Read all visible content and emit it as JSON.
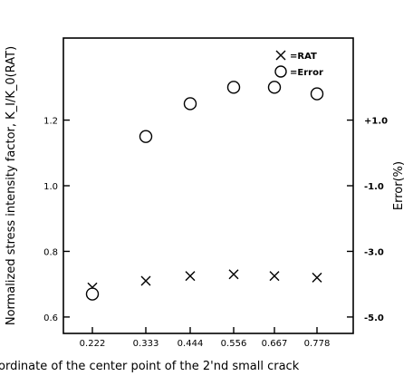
{
  "chart_data": {
    "type": "scatter",
    "title": "",
    "xlabel": "ordinate of the center point of the 2'nd small crack",
    "ylabel": "Normalized stress intensity factor, K_I/K_0(RAT)",
    "y2label": "Error(%)",
    "categories": [
      "0.222",
      "0.333",
      "0.444",
      "0.556",
      "0.667",
      "0.778"
    ],
    "ylim": [
      0.55,
      1.45
    ],
    "y_ticks": [
      0.6,
      0.8,
      1.0,
      1.2
    ],
    "y_tick_labels": [
      "0.6",
      "0.8",
      "1.0",
      "1.2"
    ],
    "y2lim": [
      -5.5,
      3.5
    ],
    "y2_ticks": [
      -5.0,
      -3.0,
      -1.0,
      1.0
    ],
    "y2_tick_labels": [
      "-5.0",
      "-3.0",
      "-1.0",
      "+1.0"
    ],
    "legend_placement": "top-right",
    "grid": false,
    "series": [
      {
        "name": "=RAT",
        "marker": "x",
        "axis": "left",
        "values": [
          0.69,
          0.71,
          0.725,
          0.73,
          0.725,
          0.72
        ]
      },
      {
        "name": "=Error",
        "marker": "o",
        "axis": "right",
        "values": [
          -4.3,
          0.5,
          1.5,
          2.0,
          2.0,
          1.8
        ]
      }
    ]
  }
}
